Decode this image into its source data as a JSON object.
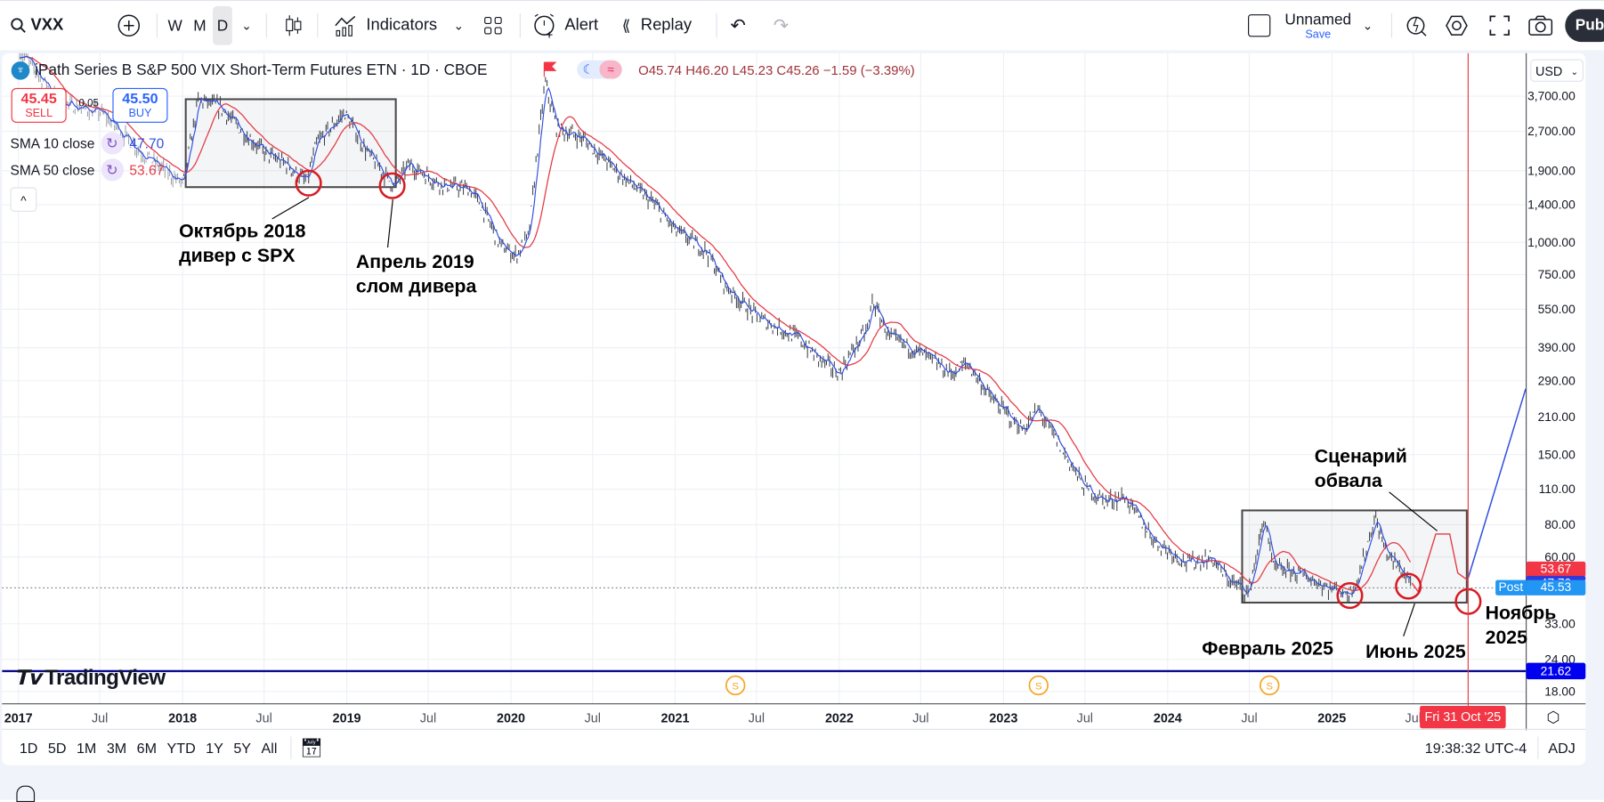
{
  "toolbar": {
    "symbol": "VXX",
    "intervals": [
      "W",
      "M",
      "D"
    ],
    "active_interval": "D",
    "indicators_label": "Indicators",
    "alert_label": "Alert",
    "replay_label": "Replay",
    "layout_name": "Unnamed",
    "save_label": "Save",
    "publish_label": "Pub"
  },
  "legend": {
    "title": "iPath Series B S&P 500 VIX Short-Term Futures ETN · 1D · CBOE",
    "ohlc": "O45.74 H46.20 L45.23 C45.26 −1.59 (−3.39%)",
    "sell_price": "45.45",
    "sell_label": "SELL",
    "spread": "0.05",
    "buy_price": "45.50",
    "buy_label": "BUY",
    "sma10_label": "SMA 10 close",
    "sma10_value": "47.70",
    "sma50_label": "SMA 50 close",
    "sma50_value": "53.67",
    "collapse_icon": "chevron-up-icon"
  },
  "price_axis": {
    "currency": "USD",
    "labels": {
      "sma50": "53.67",
      "sma10": "47.70",
      "post_tag": "Post",
      "post_price": "45.53",
      "hline": "21.62"
    }
  },
  "time_axis": {
    "cursor_label": "Fri 31 Oct '25"
  },
  "watermark": "TradingView",
  "dividend_marker": "S",
  "annotations": {
    "oct2018": "Октябрь 2018\nдивер с SPX",
    "apr2019": "Апрель 2019\nслом дивера",
    "scenario": "Сценарий\nобвала",
    "feb2025": "Февраль 2025",
    "jun2025": "Июнь 2025",
    "nov2025": "Ноябрь\n2025"
  },
  "bottom_bar": {
    "ranges": [
      "1D",
      "5D",
      "1M",
      "3M",
      "6M",
      "YTD",
      "1Y",
      "5Y",
      "All"
    ],
    "clock": "19:38:32 UTC-4",
    "adj": "ADJ"
  },
  "colors": {
    "candle": "#3a3f47",
    "sma10": "#2f4de0",
    "sma50": "#e53a45",
    "cursor_line": "#e53a45",
    "hline": "#0a0a8c",
    "post": "#2196f3",
    "dividend": "#f5a623",
    "annotation_circle": "#d81b23"
  },
  "chart_data": {
    "type": "line",
    "scale": "log",
    "grid": true,
    "ylim": [
      16,
      5600
    ],
    "xlim": [
      "2016-12-28",
      "2026-03-10"
    ],
    "y_ticks": [
      "3,700.00",
      "2,700.00",
      "1,900.00",
      "1,400.00",
      "1,000.00",
      "750.00",
      "550.00",
      "390.00",
      "290.00",
      "210.00",
      "150.00",
      "110.00",
      "80.00",
      "60.00",
      "33.00",
      "24.00",
      "18.00"
    ],
    "y_tick_values": [
      3700,
      2700,
      1900,
      1400,
      1000,
      750,
      550,
      390,
      290,
      210,
      150,
      110,
      80,
      60,
      33,
      24,
      18
    ],
    "x_ticks": [
      {
        "label": "2017",
        "date": "2017-01-01"
      },
      {
        "label": "Jul",
        "date": "2017-07-01"
      },
      {
        "label": "2018",
        "date": "2018-01-01"
      },
      {
        "label": "Jul",
        "date": "2018-07-01"
      },
      {
        "label": "2019",
        "date": "2019-01-01"
      },
      {
        "label": "Jul",
        "date": "2019-07-01"
      },
      {
        "label": "2020",
        "date": "2020-01-01"
      },
      {
        "label": "Jul",
        "date": "2020-07-01"
      },
      {
        "label": "2021",
        "date": "2021-01-01"
      },
      {
        "label": "Jul",
        "date": "2021-07-01"
      },
      {
        "label": "2022",
        "date": "2022-01-01"
      },
      {
        "label": "Jul",
        "date": "2022-07-01"
      },
      {
        "label": "2023",
        "date": "2023-01-01"
      },
      {
        "label": "Jul",
        "date": "2023-07-01"
      },
      {
        "label": "2024",
        "date": "2024-01-01"
      },
      {
        "label": "Jul",
        "date": "2024-07-01"
      },
      {
        "label": "2025",
        "date": "2025-01-01"
      },
      {
        "label": "Jul",
        "date": "2025-07-01"
      }
    ],
    "price": [
      [
        "2017-01-04",
        5540
      ],
      [
        "2017-04-05",
        3500
      ],
      [
        "2017-07-05",
        3200
      ],
      [
        "2017-10-04",
        2215
      ],
      [
        "2018-01-02",
        1685
      ],
      [
        "2018-02-05",
        3600
      ],
      [
        "2018-03-26",
        3345
      ],
      [
        "2018-05-18",
        2660
      ],
      [
        "2018-07-05",
        2215
      ],
      [
        "2018-08-18",
        2020
      ],
      [
        "2018-10-04",
        1715
      ],
      [
        "2018-10-26",
        2430
      ],
      [
        "2018-12-27",
        3200
      ],
      [
        "2019-02-17",
        2215
      ],
      [
        "2019-04-16",
        1650
      ],
      [
        "2019-05-19",
        2020
      ],
      [
        "2019-07-27",
        1685
      ],
      [
        "2019-10-01",
        1610
      ],
      [
        "2019-10-26",
        1400
      ],
      [
        "2019-12-09",
        973
      ],
      [
        "2020-01-12",
        888
      ],
      [
        "2020-02-10",
        1065
      ],
      [
        "2020-02-28",
        2215
      ],
      [
        "2020-03-17",
        4200
      ],
      [
        "2020-04-12",
        2780
      ],
      [
        "2020-06-10",
        2540
      ],
      [
        "2020-08-18",
        1930
      ],
      [
        "2020-11-17",
        1400
      ],
      [
        "2021-01-01",
        1115
      ],
      [
        "2021-03-11",
        930
      ],
      [
        "2021-04-23",
        675
      ],
      [
        "2021-07-02",
        513
      ],
      [
        "2021-10-01",
        427
      ],
      [
        "2021-11-14",
        356
      ],
      [
        "2022-01-01",
        310
      ],
      [
        "2022-02-03",
        390
      ],
      [
        "2022-03-07",
        468
      ],
      [
        "2022-03-14",
        600
      ],
      [
        "2022-04-23",
        427
      ],
      [
        "2022-07-02",
        372
      ],
      [
        "2022-09-06",
        310
      ],
      [
        "2022-10-12",
        340
      ],
      [
        "2022-12-06",
        247
      ],
      [
        "2023-02-14",
        187
      ],
      [
        "2023-03-18",
        225
      ],
      [
        "2023-04-23",
        178
      ],
      [
        "2023-06-28",
        113
      ],
      [
        "2023-08-14",
        99
      ],
      [
        "2023-09-27",
        103
      ],
      [
        "2023-10-19",
        90
      ],
      [
        "2023-12-06",
        68.5
      ],
      [
        "2024-02-14",
        57
      ],
      [
        "2024-04-08",
        59.7
      ],
      [
        "2024-05-11",
        49.8
      ],
      [
        "2024-06-28",
        43.4
      ],
      [
        "2024-08-05",
        86
      ],
      [
        "2024-08-22",
        54.5
      ],
      [
        "2024-10-19",
        52
      ],
      [
        "2024-12-28",
        45.4
      ],
      [
        "2025-02-10",
        43.4
      ],
      [
        "2025-03-04",
        52
      ],
      [
        "2025-04-07",
        86
      ],
      [
        "2025-05-01",
        62.6
      ],
      [
        "2025-06-28",
        47.5
      ]
    ],
    "sma10_last": 47.7,
    "sma50_last": 53.67,
    "hline_value": 21.62,
    "last_price": 45.53,
    "cursor_date": "2025-10-31",
    "dividend_dates": [
      "2021-05-15",
      "2023-03-20",
      "2024-08-15"
    ],
    "drawings": {
      "boxes": [
        {
          "from": "2018-01-08",
          "to": "2019-04-20",
          "top": 3600,
          "bottom": 1640
        },
        {
          "from": "2024-06-15",
          "to": "2025-10-28",
          "top": 91,
          "bottom": 39.9
        }
      ],
      "circles": [
        {
          "date": "2018-10-08",
          "price": 1700
        },
        {
          "date": "2019-04-12",
          "price": 1660
        },
        {
          "date": "2025-02-10",
          "price": 42.5
        },
        {
          "date": "2025-06-20",
          "price": 46.2
        },
        {
          "date": "2025-10-31",
          "price": 40.3
        }
      ],
      "scenario_red": [
        [
          "2025-06-28",
          47.5
        ],
        [
          "2025-07-12",
          44
        ],
        [
          "2025-08-20",
          73.7
        ],
        [
          "2025-09-20",
          73.7
        ],
        [
          "2025-10-08",
          52
        ],
        [
          "2025-10-31",
          48.6
        ]
      ],
      "scenario_blue": [
        [
          "2025-10-31",
          49.6
        ],
        [
          "2026-03-08",
          270
        ]
      ]
    }
  }
}
